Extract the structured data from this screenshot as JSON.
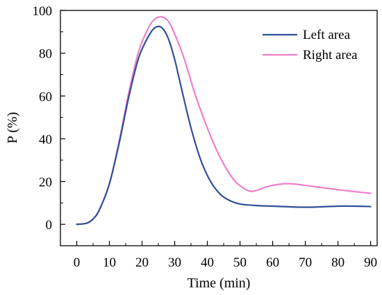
{
  "chart_data": {
    "type": "line",
    "title": "",
    "xlabel": "Time (min)",
    "ylabel": "P (%)",
    "xlim": [
      -5,
      92
    ],
    "ylim": [
      -10,
      100
    ],
    "xticks": [
      0,
      10,
      20,
      30,
      40,
      50,
      60,
      70,
      80,
      90
    ],
    "yticks": [
      0,
      20,
      40,
      60,
      80,
      100
    ],
    "grid": false,
    "legend_position": "top-right",
    "series": [
      {
        "name": "Left area",
        "color": "#2e4f9a",
        "x": [
          0,
          3,
          5,
          7,
          10,
          13,
          16,
          19,
          22,
          24,
          26,
          28,
          30,
          32,
          35,
          38,
          41,
          44,
          47,
          50,
          53,
          56,
          60,
          65,
          70,
          75,
          80,
          85,
          90
        ],
        "y": [
          0,
          0.5,
          2.5,
          7,
          19,
          38,
          60,
          78,
          88,
          92,
          92,
          87,
          77,
          64,
          45,
          30,
          20,
          14,
          11,
          9.5,
          9,
          8.7,
          8.5,
          8.2,
          8,
          8.2,
          8.5,
          8.5,
          8.3
        ]
      },
      {
        "name": "Right area",
        "color": "#f07ec8",
        "x": [
          0,
          3,
          5,
          7,
          10,
          13,
          16,
          19,
          22,
          24,
          26,
          28,
          30,
          33,
          36,
          40,
          44,
          48,
          51,
          53,
          55,
          58,
          61,
          64,
          67,
          70,
          75,
          80,
          85,
          90
        ],
        "y": [
          0,
          0.5,
          2.5,
          7,
          19,
          39,
          62,
          81,
          92,
          96,
          97,
          95,
          89,
          77,
          62,
          45,
          31,
          21,
          17,
          15.5,
          15.8,
          17.5,
          18.5,
          19,
          18.8,
          18.2,
          17.2,
          16.2,
          15.3,
          14.5
        ]
      }
    ]
  }
}
